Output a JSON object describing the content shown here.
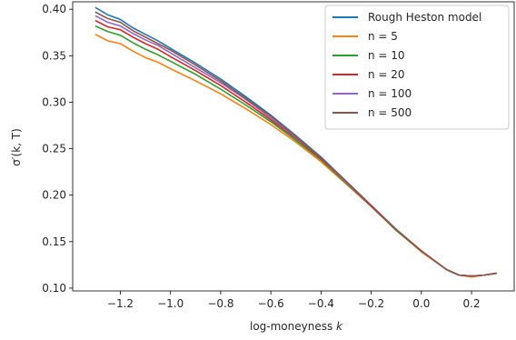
{
  "chart_data": {
    "type": "line",
    "title": "",
    "xlabel": "log-moneyness",
    "xlabel_var": "k",
    "ylabel": "σ′(k, T)",
    "xlim": [
      -1.39,
      0.37
    ],
    "ylim": [
      0.097,
      0.408
    ],
    "xticks": [
      -1.2,
      -1.0,
      -0.8,
      -0.6,
      -0.4,
      -0.2,
      0.0,
      0.2
    ],
    "xtick_labels": [
      "−1.2",
      "−1.0",
      "−0.8",
      "−0.6",
      "−0.4",
      "−0.2",
      "0.0",
      "0.2"
    ],
    "yticks": [
      0.1,
      0.15,
      0.2,
      0.25,
      0.3,
      0.35,
      0.4
    ],
    "ytick_labels": [
      "0.10",
      "0.15",
      "0.20",
      "0.25",
      "0.30",
      "0.35",
      "0.40"
    ],
    "grid": false,
    "legend_position": "top-right",
    "x": [
      -1.3,
      -1.25,
      -1.2,
      -1.15,
      -1.1,
      -1.05,
      -1.0,
      -0.9,
      -0.8,
      -0.7,
      -0.6,
      -0.5,
      -0.4,
      -0.3,
      -0.2,
      -0.1,
      0.0,
      0.1,
      0.15,
      0.2,
      0.25,
      0.3
    ],
    "series": [
      {
        "name": "Rough Heston model",
        "color": "#1f77b4",
        "values": [
          0.402,
          0.394,
          0.389,
          0.38,
          0.373,
          0.366,
          0.358,
          0.342,
          0.325,
          0.306,
          0.286,
          0.264,
          0.241,
          0.215,
          0.189,
          0.163,
          0.14,
          0.12,
          0.114,
          0.113,
          0.114,
          0.116
        ]
      },
      {
        "name": "n = 5",
        "color": "#ff7f0e",
        "values": [
          0.373,
          0.366,
          0.363,
          0.355,
          0.348,
          0.343,
          0.336,
          0.323,
          0.309,
          0.293,
          0.276,
          0.257,
          0.236,
          0.212,
          0.188,
          0.162,
          0.139,
          0.12,
          0.114,
          0.112,
          0.114,
          0.116
        ]
      },
      {
        "name": "n = 10",
        "color": "#2ca02c",
        "values": [
          0.382,
          0.376,
          0.372,
          0.364,
          0.357,
          0.351,
          0.344,
          0.33,
          0.314,
          0.297,
          0.279,
          0.259,
          0.238,
          0.213,
          0.188,
          0.162,
          0.14,
          0.12,
          0.114,
          0.113,
          0.114,
          0.116
        ]
      },
      {
        "name": "n = 20",
        "color": "#d62728",
        "values": [
          0.388,
          0.381,
          0.378,
          0.37,
          0.363,
          0.357,
          0.349,
          0.334,
          0.318,
          0.3,
          0.281,
          0.261,
          0.239,
          0.214,
          0.188,
          0.163,
          0.14,
          0.12,
          0.114,
          0.113,
          0.114,
          0.116
        ]
      },
      {
        "name": "n = 100",
        "color": "#9467bd",
        "values": [
          0.393,
          0.386,
          0.382,
          0.374,
          0.367,
          0.361,
          0.353,
          0.337,
          0.321,
          0.303,
          0.283,
          0.262,
          0.24,
          0.214,
          0.189,
          0.163,
          0.14,
          0.12,
          0.114,
          0.113,
          0.114,
          0.116
        ]
      },
      {
        "name": "n = 500",
        "color": "#8c564b",
        "values": [
          0.397,
          0.39,
          0.386,
          0.377,
          0.37,
          0.363,
          0.356,
          0.34,
          0.323,
          0.304,
          0.285,
          0.263,
          0.24,
          0.215,
          0.189,
          0.163,
          0.14,
          0.12,
          0.114,
          0.113,
          0.114,
          0.116
        ]
      }
    ]
  }
}
